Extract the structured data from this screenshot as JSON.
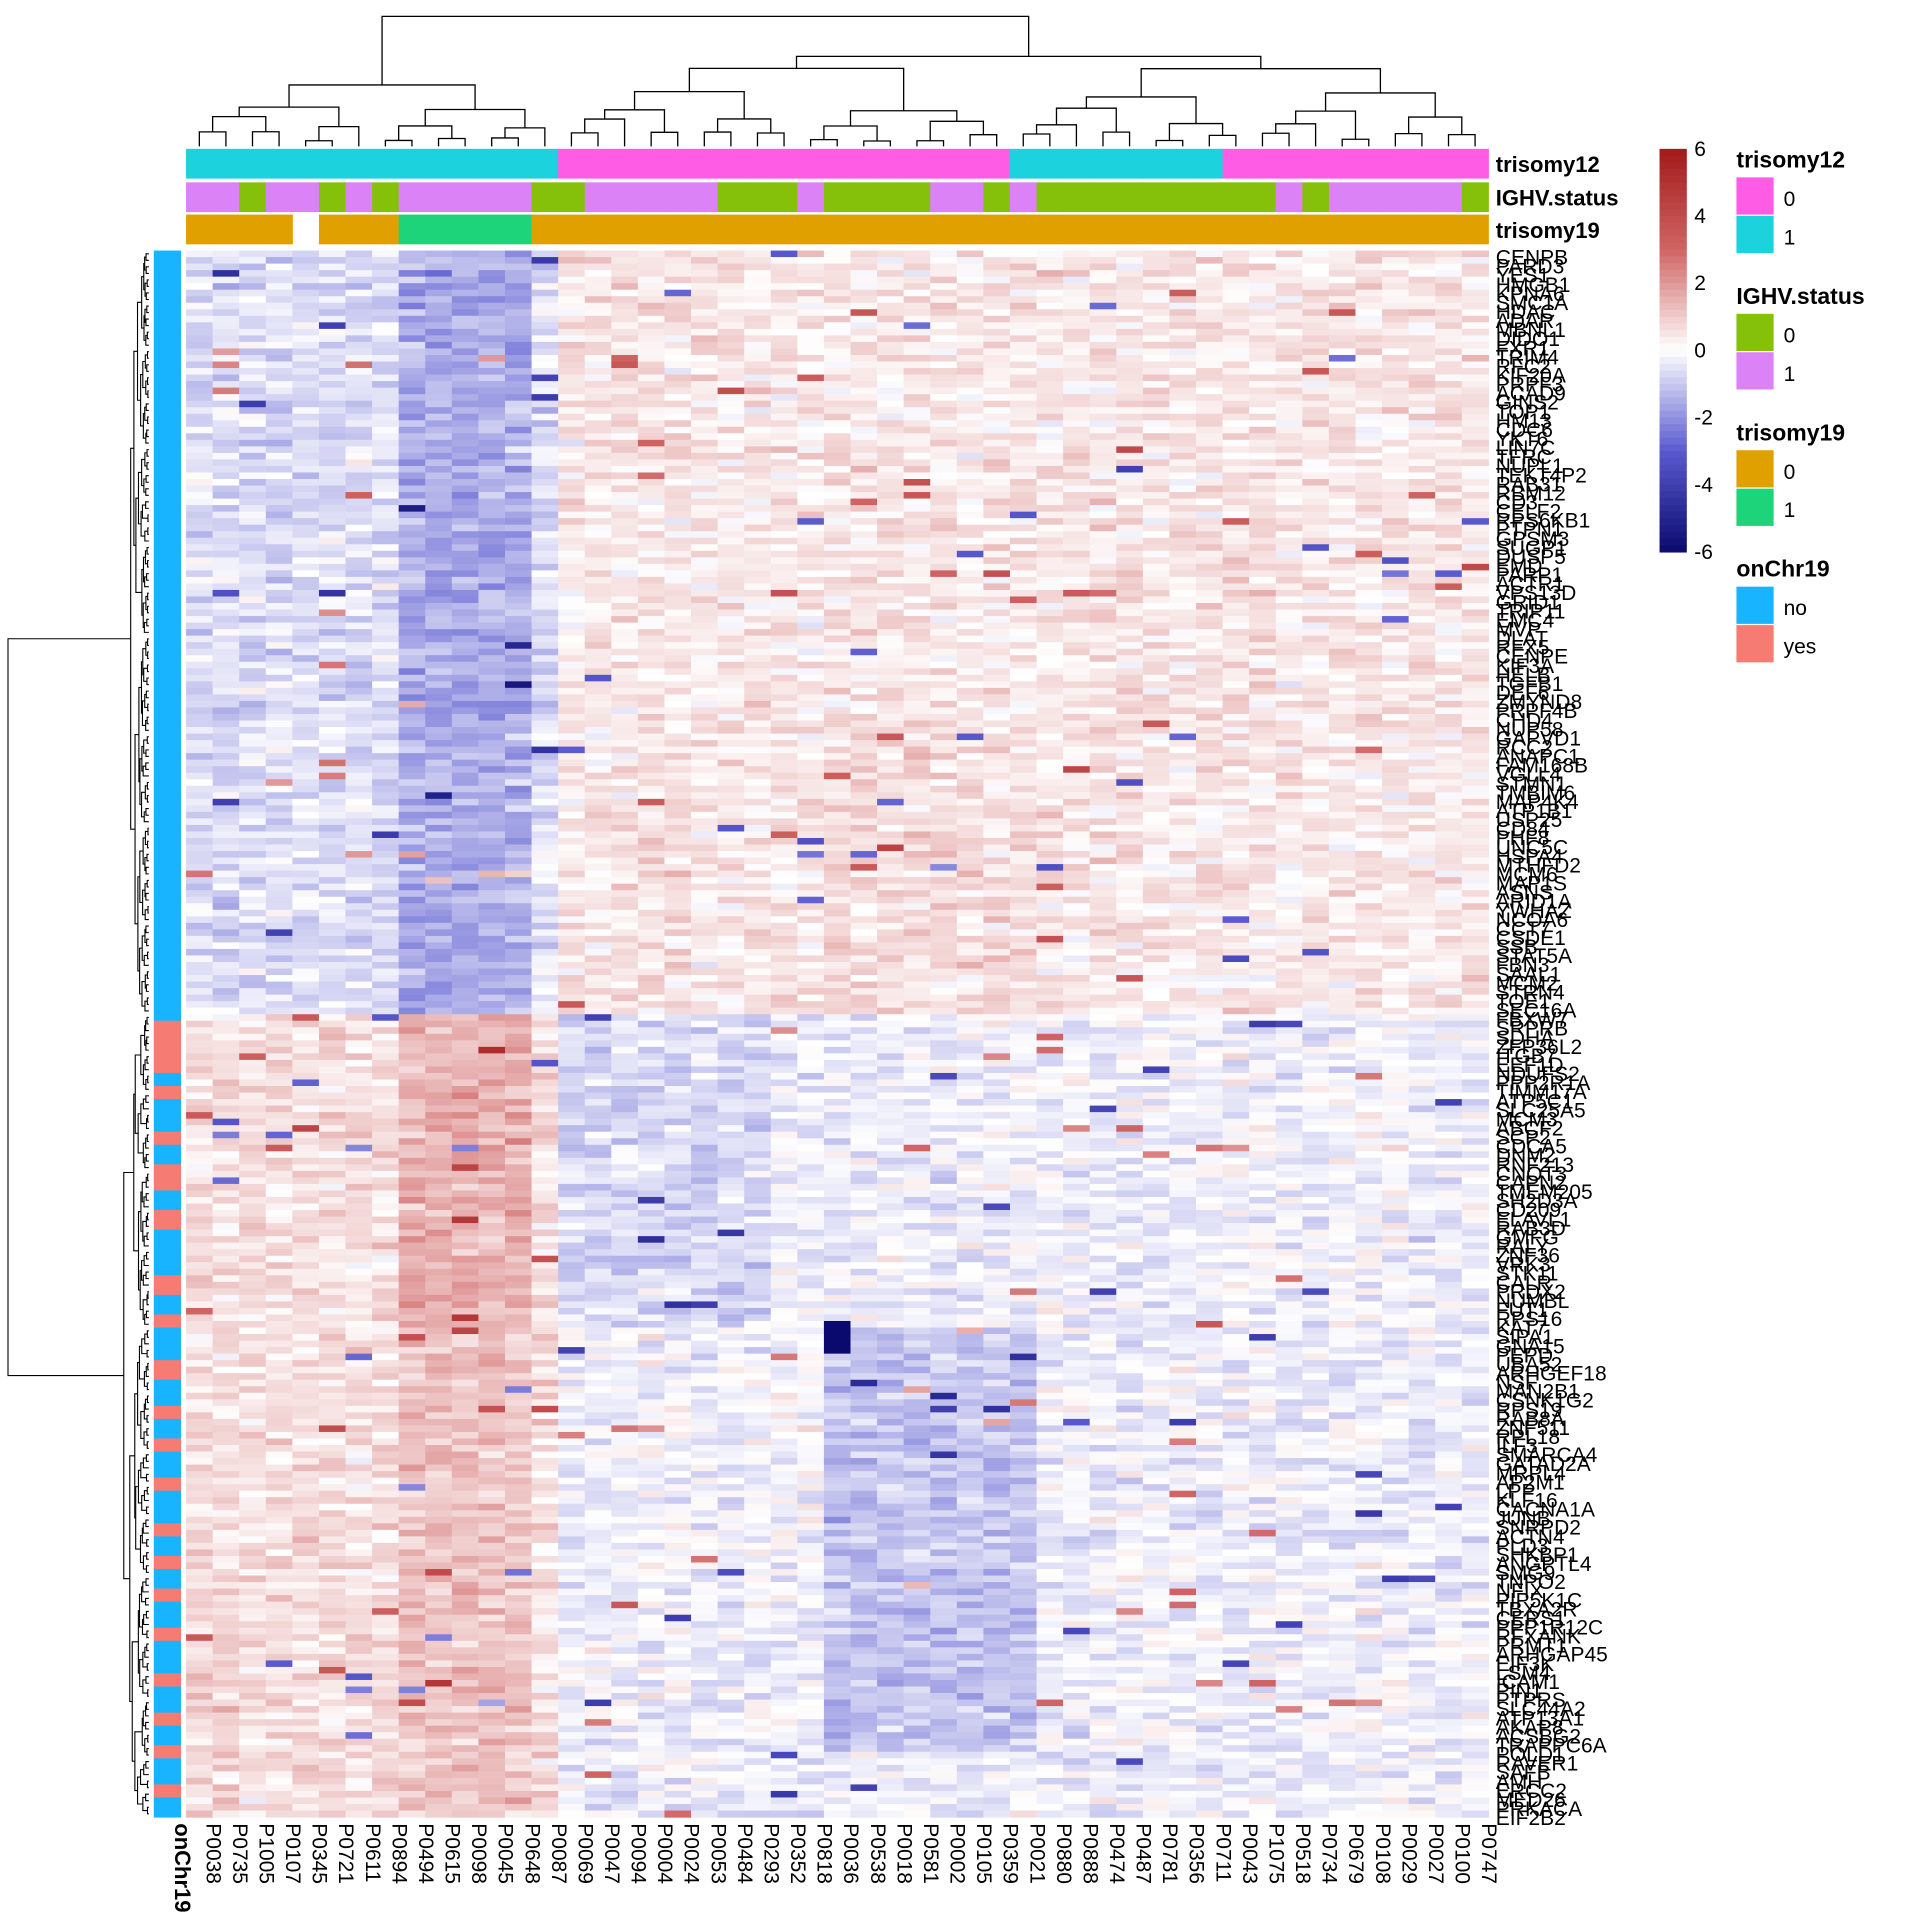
{
  "chart_data": {
    "type": "heatmap",
    "title": "",
    "value_scale": {
      "min": -6,
      "max": 6,
      "ticks": [
        6,
        4,
        2,
        0,
        -2,
        -4,
        -6
      ],
      "colors": {
        "low": "#0a0a6e",
        "mid_low": "#5a5ad0",
        "mid": "#ffffff",
        "mid_high": "#d06464",
        "high": "#a21a1a"
      }
    },
    "columns": [
      "P0038",
      "P0735",
      "P1005",
      "P0107",
      "P0345",
      "P0721",
      "P0611",
      "P0894",
      "P0494",
      "P0615",
      "P0098",
      "P0045",
      "P0648",
      "P0087",
      "P0069",
      "P0047",
      "P0094",
      "P0004",
      "P0024",
      "P0053",
      "P0484",
      "P0293",
      "P0352",
      "P0818",
      "P0036",
      "P0538",
      "P0018",
      "P0581",
      "P0002",
      "P0105",
      "P0359",
      "P0021",
      "P0880",
      "P0888",
      "P0474",
      "P0487",
      "P0781",
      "P0356",
      "P0711",
      "P0043",
      "P1075",
      "P0518",
      "P0734",
      "P0679",
      "P0108",
      "P0029",
      "P0027",
      "P0100",
      "P0747"
    ],
    "column_annotations": [
      {
        "name": "trisomy12",
        "values": [
          1,
          1,
          1,
          1,
          1,
          1,
          1,
          1,
          1,
          1,
          1,
          1,
          1,
          1,
          0,
          0,
          0,
          0,
          0,
          0,
          0,
          0,
          0,
          0,
          0,
          0,
          0,
          0,
          0,
          0,
          0,
          1,
          1,
          1,
          1,
          1,
          1,
          1,
          1,
          0,
          0,
          0,
          0,
          0,
          0,
          0,
          0,
          0,
          0
        ],
        "levels": [
          "0",
          "1"
        ],
        "colors": {
          "0": "#ff5ce6",
          "1": "#1cd3dd"
        }
      },
      {
        "name": "IGHV.status",
        "values": [
          1,
          1,
          0,
          1,
          1,
          0,
          1,
          0,
          1,
          1,
          1,
          1,
          1,
          0,
          0,
          1,
          1,
          1,
          1,
          1,
          0,
          0,
          0,
          1,
          0,
          0,
          0,
          0,
          1,
          1,
          0,
          1,
          0,
          0,
          0,
          0,
          0,
          0,
          0,
          0,
          0,
          1,
          0,
          1,
          1,
          1,
          1,
          1,
          0
        ],
        "levels": [
          "0",
          "1"
        ],
        "colors": {
          "0": "#85c10a",
          "1": "#dc82f7"
        }
      },
      {
        "name": "trisomy19",
        "values": [
          0,
          0,
          0,
          0,
          null,
          0,
          0,
          0,
          1,
          1,
          1,
          1,
          1,
          0,
          0,
          0,
          0,
          0,
          0,
          0,
          0,
          0,
          0,
          0,
          0,
          0,
          0,
          0,
          0,
          0,
          0,
          0,
          0,
          0,
          0,
          0,
          0,
          0,
          0,
          0,
          0,
          0,
          0,
          0,
          0,
          0,
          0,
          0,
          0
        ],
        "levels": [
          "0",
          "1"
        ],
        "colors": {
          "0": "#e0a000",
          "1": "#1ed47a"
        }
      }
    ],
    "row_annotation": {
      "name": "onChr19",
      "levels": [
        "no",
        "yes"
      ],
      "colors": {
        "no": "#19b4ff",
        "yes": "#f67b72"
      }
    },
    "row_labels": [
      "CENPB",
      "PARD3",
      "YES1",
      "HMGB1",
      "KPNA6",
      "SMC1A",
      "HDAC",
      "ADAR",
      "MBNL1",
      "DIDO1",
      "FXR1",
      "TRIM4",
      "RFC2",
      "KIF20A",
      "PRPF3",
      "ACAD9",
      "GINS2",
      "TOP1",
      "HM13",
      "CDC6",
      "YKT6",
      "LIN7C",
      "TFRC",
      "NUPL1",
      "TEKT4P2",
      "RAB31",
      "RBM12",
      "CD3",
      "CELF2",
      "RPS6KB1",
      "PTPN1",
      "GPSM3",
      "SUGP1",
      "DUSP5",
      "EMD",
      "PARP1",
      "ACTR1",
      "VPS13D",
      "GRID1",
      "TRIP11",
      "EMC4",
      "MVP",
      "DLAT",
      "RFX5",
      "CENPE",
      "KIF3A",
      "HELB",
      "TGFB1",
      "DEF6",
      "ZMYND8",
      "PRPF4B",
      "CHD4",
      "NUP58",
      "GAPVD1",
      "RCC2",
      "ANAPC1",
      "FAM168B",
      "VGLL4",
      "STMN1",
      "TMBIM6",
      "MAP4K4",
      "ATP1B1",
      "USP25",
      "CD84",
      "PHF8",
      "UNC5C",
      "HSPA4",
      "MTHFD2",
      "MCM6",
      "MAP1S",
      "ASNS",
      "ARID1A",
      "YWHAZ",
      "NCOA6",
      "CCT7",
      "CSDE1",
      "SSB",
      "STAT5A",
      "FBN3",
      "SAAL1",
      "MCM2",
      "STRN4",
      "TOE1",
      "SEC16A",
      "FBXW7",
      "SRPRB",
      "SDHA",
      "ZFP36L2",
      "ITGB7",
      "EEF1D",
      "NDUFS2",
      "PPP2R1A",
      "TIMM17A",
      "ATP5C1",
      "SLC25A5",
      "MCM3",
      "ABCF2",
      "SCP2",
      "CDCA5",
      "DNM2",
      "RNF213",
      "CNOT3",
      "CAPN2",
      "TMEM205",
      "SH2D3A",
      "CD209",
      "ELAVL1",
      "RAB3D",
      "GMFG",
      "RALY",
      "ZNF36",
      "VRK3",
      "STK11",
      "CALR",
      "PRDX2",
      "NUMBL",
      "FUT1",
      "RPS16",
      "KAT7",
      "SIPA1",
      "GNA15",
      "PEPD",
      "UBA52",
      "ARHGEF18",
      "NSF",
      "MAN2B1",
      "CSNK1G2",
      "RPS19",
      "RAB8A",
      "ZNF511",
      "RPL18",
      "ILF3",
      "SMARCA4",
      "GATAD2A",
      "MRPL4",
      "AP2M1",
      "LPP",
      "KLF16",
      "CACNA1A",
      "JUNB",
      "SNRPD2",
      "ACTN4",
      "PLD3",
      "SHKBP1",
      "ANGPTL4",
      "SMG9",
      "TNPO2",
      "NFIX",
      "PIP5K1C",
      "TBXA2R",
      "CERS1",
      "PPP1R12C",
      "RFXANK",
      "PRMT1",
      "ARHGAP45",
      "EIF3K",
      "LSM4",
      "ICAM1",
      "PIN1",
      "PTPRS",
      "SLC44A2",
      "ATP13A1",
      "AKAP8",
      "ACSBG2",
      "TRAPPC6A",
      "POLD1",
      "RAVER1",
      "SAFB",
      "AMH",
      "ERCC2",
      "MED26",
      "PRKACA",
      "EIF2B2"
    ]
  }
}
